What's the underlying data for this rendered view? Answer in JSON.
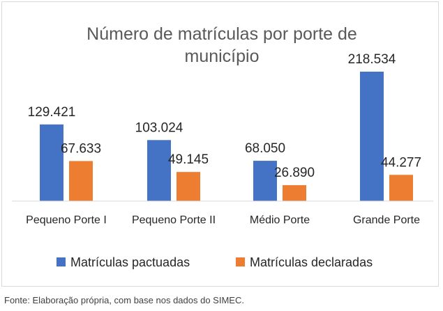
{
  "chart_data": {
    "type": "bar",
    "title_lines": [
      "Número de matrículas por porte de",
      "município"
    ],
    "categories": [
      "Pequeno Porte I",
      "Pequeno Porte II",
      "Médio Porte",
      "Grande Porte"
    ],
    "series": [
      {
        "name": "Matrículas pactuadas",
        "color": "#4472c4",
        "values": [
          129421,
          103024,
          68050,
          218534
        ],
        "labels": [
          "129.421",
          "103.024",
          "68.050",
          "218.534"
        ]
      },
      {
        "name": "Matrículas declaradas",
        "color": "#ed7d31",
        "values": [
          67633,
          49145,
          26890,
          44277
        ],
        "labels": [
          "67.633",
          "49.145",
          "26.890",
          "44.277"
        ]
      }
    ],
    "ylim": [
      0,
      218534
    ],
    "legend": "bottom",
    "grid": false
  },
  "source": "Fonte: Elaboração própria, com base nos dados do SIMEC."
}
